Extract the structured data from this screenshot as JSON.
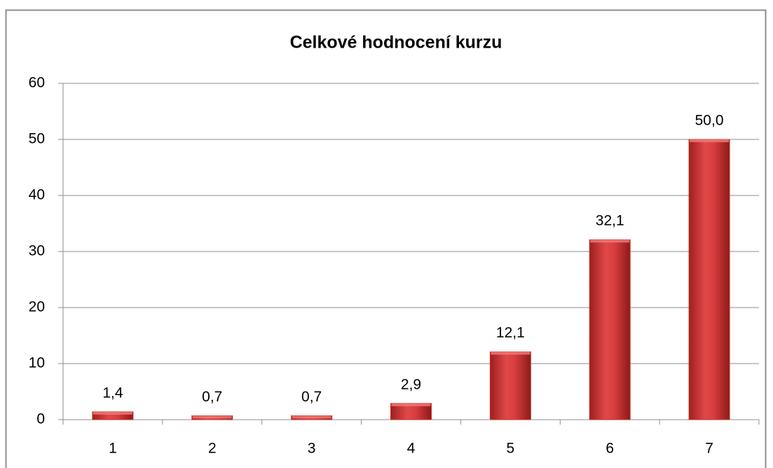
{
  "chart_data": {
    "type": "bar",
    "title": "Celkové hodnocení  kurzu",
    "categories": [
      "1",
      "2",
      "3",
      "4",
      "5",
      "6",
      "7"
    ],
    "values": [
      1.4,
      0.7,
      0.7,
      2.9,
      12.1,
      32.1,
      50.0
    ],
    "value_labels": [
      "1,4",
      "0,7",
      "0,7",
      "2,9",
      "12,1",
      "32,1",
      "50,0"
    ],
    "color": "#c0392b",
    "ylim": [
      0,
      60
    ],
    "yticks": [
      0,
      10,
      20,
      30,
      40,
      50,
      60
    ],
    "grid": true
  }
}
